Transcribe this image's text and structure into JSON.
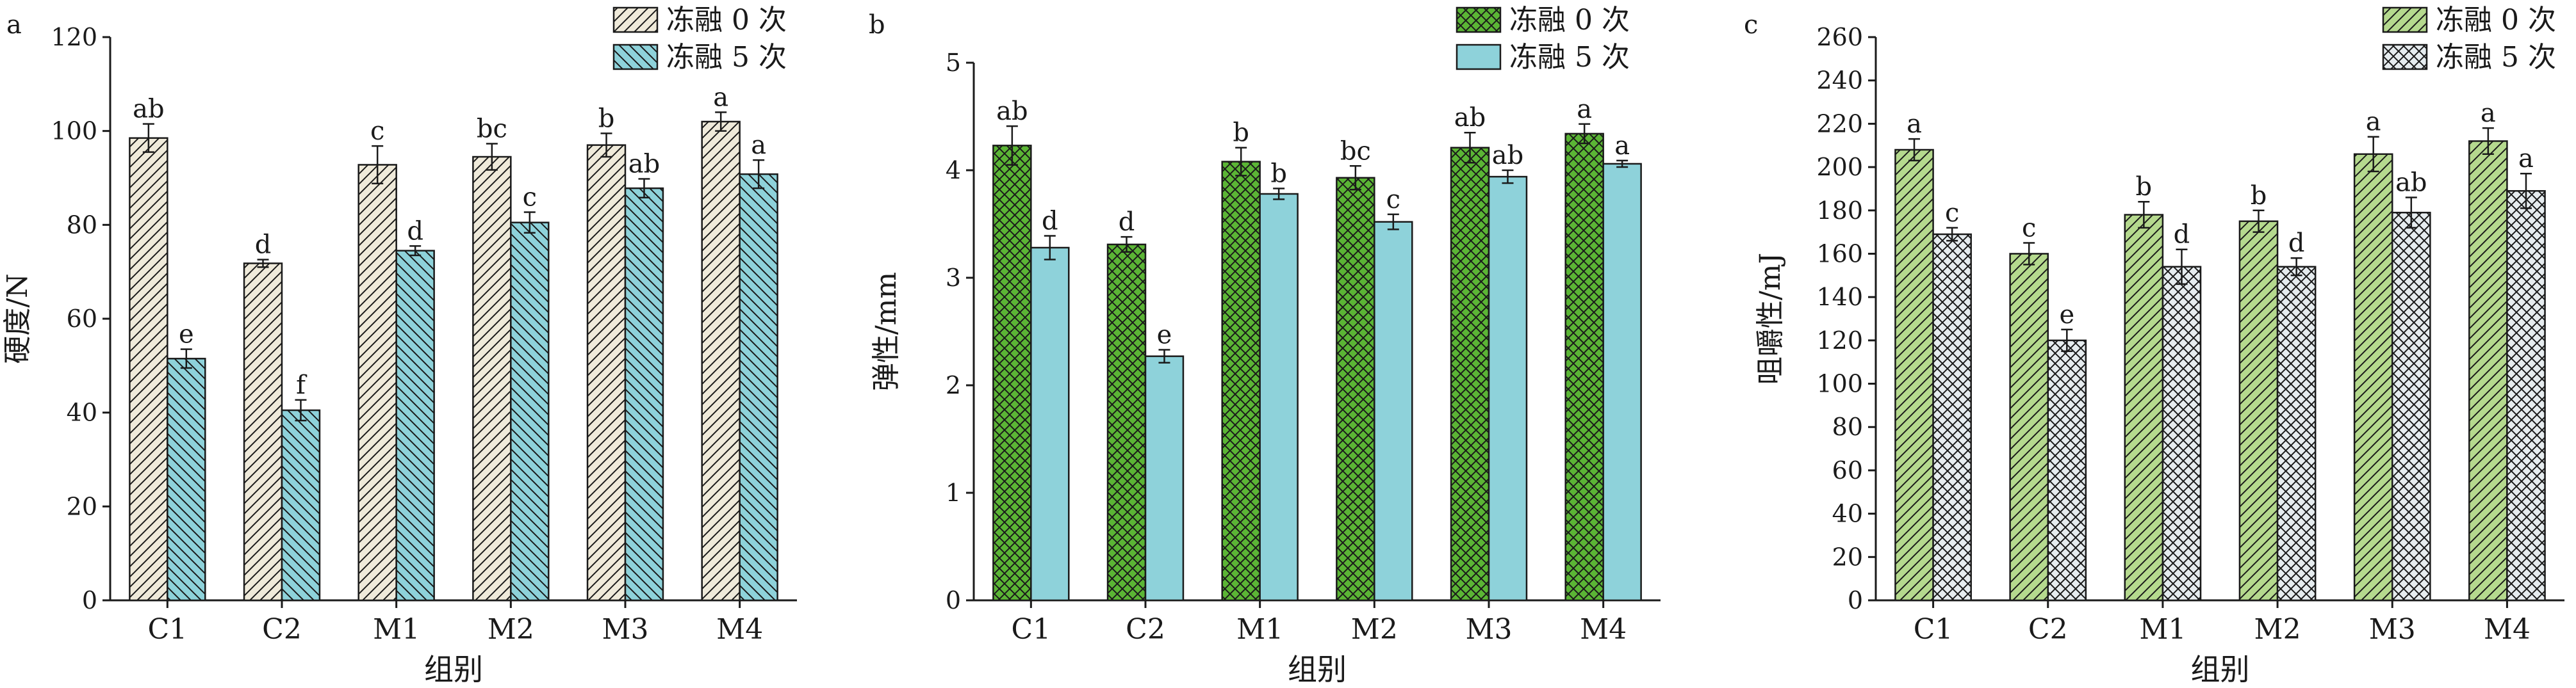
{
  "colors": {
    "beige": "#efeada",
    "teal": "#8ed2da",
    "green": "#5bb535",
    "lightgreen": "#b5d98e",
    "lightgray": "#e6ecef",
    "ink": "#1a1a1a"
  },
  "chart_data": [
    {
      "type": "bar",
      "panel_label": "a",
      "title": "",
      "xlabel": "组别",
      "ylabel": "硬度/N",
      "categories": [
        "C1",
        "C2",
        "M1",
        "M2",
        "M3",
        "M4"
      ],
      "ylim": [
        0,
        120
      ],
      "yticks": [
        0,
        20,
        40,
        60,
        80,
        100,
        120
      ],
      "legend_position": "top-right",
      "series": [
        {
          "name": "冻融 0 次",
          "fill_color": "#efeada",
          "pattern": "diagonal-up",
          "values": [
            98.5,
            71.8,
            92.8,
            94.5,
            97.0,
            102.0
          ],
          "errors": [
            3.0,
            0.8,
            4.0,
            2.8,
            2.5,
            2.0
          ],
          "letters": [
            "ab",
            "d",
            "c",
            "bc",
            "b",
            "a"
          ]
        },
        {
          "name": "冻融 5 次",
          "fill_color": "#8ed2da",
          "pattern": "diagonal-down",
          "values": [
            51.5,
            40.5,
            74.5,
            80.5,
            87.8,
            90.8
          ],
          "errors": [
            2.0,
            2.2,
            1.0,
            2.2,
            2.0,
            3.0
          ],
          "letters": [
            "e",
            "f",
            "d",
            "c",
            "ab",
            "a"
          ]
        }
      ]
    },
    {
      "type": "bar",
      "panel_label": "b",
      "title": "",
      "xlabel": "组别",
      "ylabel": "弹性/mm",
      "categories": [
        "C1",
        "C2",
        "M1",
        "M2",
        "M3",
        "M4"
      ],
      "ylim": [
        0,
        5
      ],
      "yticks": [
        0,
        1,
        2,
        3,
        4,
        5
      ],
      "legend_position": "top-right",
      "series": [
        {
          "name": "冻融 0 次",
          "fill_color": "#5bb535",
          "pattern": "crosshatch",
          "values": [
            4.23,
            3.31,
            4.08,
            3.93,
            4.21,
            4.34
          ],
          "errors": [
            0.18,
            0.07,
            0.13,
            0.11,
            0.14,
            0.09
          ],
          "letters": [
            "ab",
            "d",
            "b",
            "bc",
            "ab",
            "a"
          ]
        },
        {
          "name": "冻融 5 次",
          "fill_color": "#8ed2da",
          "pattern": "solid",
          "values": [
            3.28,
            2.27,
            3.78,
            3.52,
            3.94,
            4.06
          ],
          "errors": [
            0.11,
            0.06,
            0.05,
            0.07,
            0.06,
            0.03
          ],
          "letters": [
            "d",
            "e",
            "b",
            "c",
            "ab",
            "a"
          ]
        }
      ]
    },
    {
      "type": "bar",
      "panel_label": "c",
      "title": "",
      "xlabel": "组别",
      "ylabel": "咀嚼性/mJ",
      "categories": [
        "C1",
        "C2",
        "M1",
        "M2",
        "M3",
        "M4"
      ],
      "ylim": [
        0,
        260
      ],
      "yticks": [
        0,
        20,
        40,
        60,
        80,
        100,
        120,
        140,
        160,
        180,
        200,
        220,
        240,
        260
      ],
      "legend_position": "top-right",
      "series": [
        {
          "name": "冻融 0 次",
          "fill_color": "#b5d98e",
          "pattern": "diagonal-up",
          "values": [
            208,
            160,
            178,
            175,
            206,
            212
          ],
          "errors": [
            5,
            5,
            6,
            5,
            8,
            6
          ],
          "letters": [
            "a",
            "c",
            "b",
            "b",
            "a",
            "a"
          ]
        },
        {
          "name": "冻融 5 次",
          "fill_color": "#e6ecef",
          "pattern": "crosshatch",
          "values": [
            169,
            120,
            154,
            154,
            179,
            189
          ],
          "errors": [
            3,
            5,
            8,
            4,
            7,
            8
          ],
          "letters": [
            "c",
            "e",
            "d",
            "d",
            "ab",
            "a"
          ]
        }
      ]
    }
  ]
}
